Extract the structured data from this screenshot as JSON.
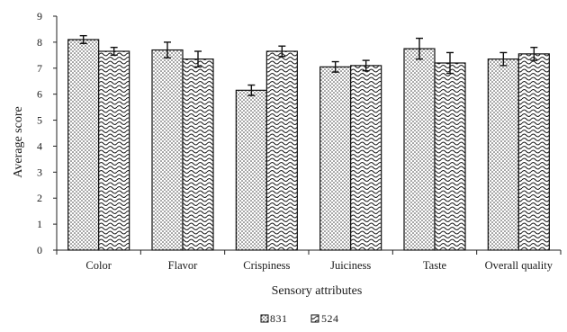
{
  "chart_data": {
    "type": "bar",
    "title": "",
    "xlabel": "Sensory attributes",
    "ylabel": "Average score",
    "ylim": [
      0,
      9
    ],
    "yticks": [
      0,
      1,
      2,
      3,
      4,
      5,
      6,
      7,
      8,
      9
    ],
    "grid": false,
    "legend_position": "bottom-center",
    "categories": [
      "Color",
      "Flavor",
      "Crispiness",
      "Juiciness",
      "Taste",
      "Overall quality"
    ],
    "series": [
      {
        "name": "831",
        "pattern": "dots",
        "values": [
          8.1,
          7.7,
          6.15,
          7.05,
          7.75,
          7.35
        ],
        "errors": [
          0.15,
          0.3,
          0.2,
          0.2,
          0.4,
          0.25
        ]
      },
      {
        "name": "524",
        "pattern": "waves",
        "values": [
          7.65,
          7.35,
          7.65,
          7.1,
          7.2,
          7.55
        ],
        "errors": [
          0.15,
          0.3,
          0.2,
          0.2,
          0.4,
          0.25
        ]
      }
    ]
  }
}
